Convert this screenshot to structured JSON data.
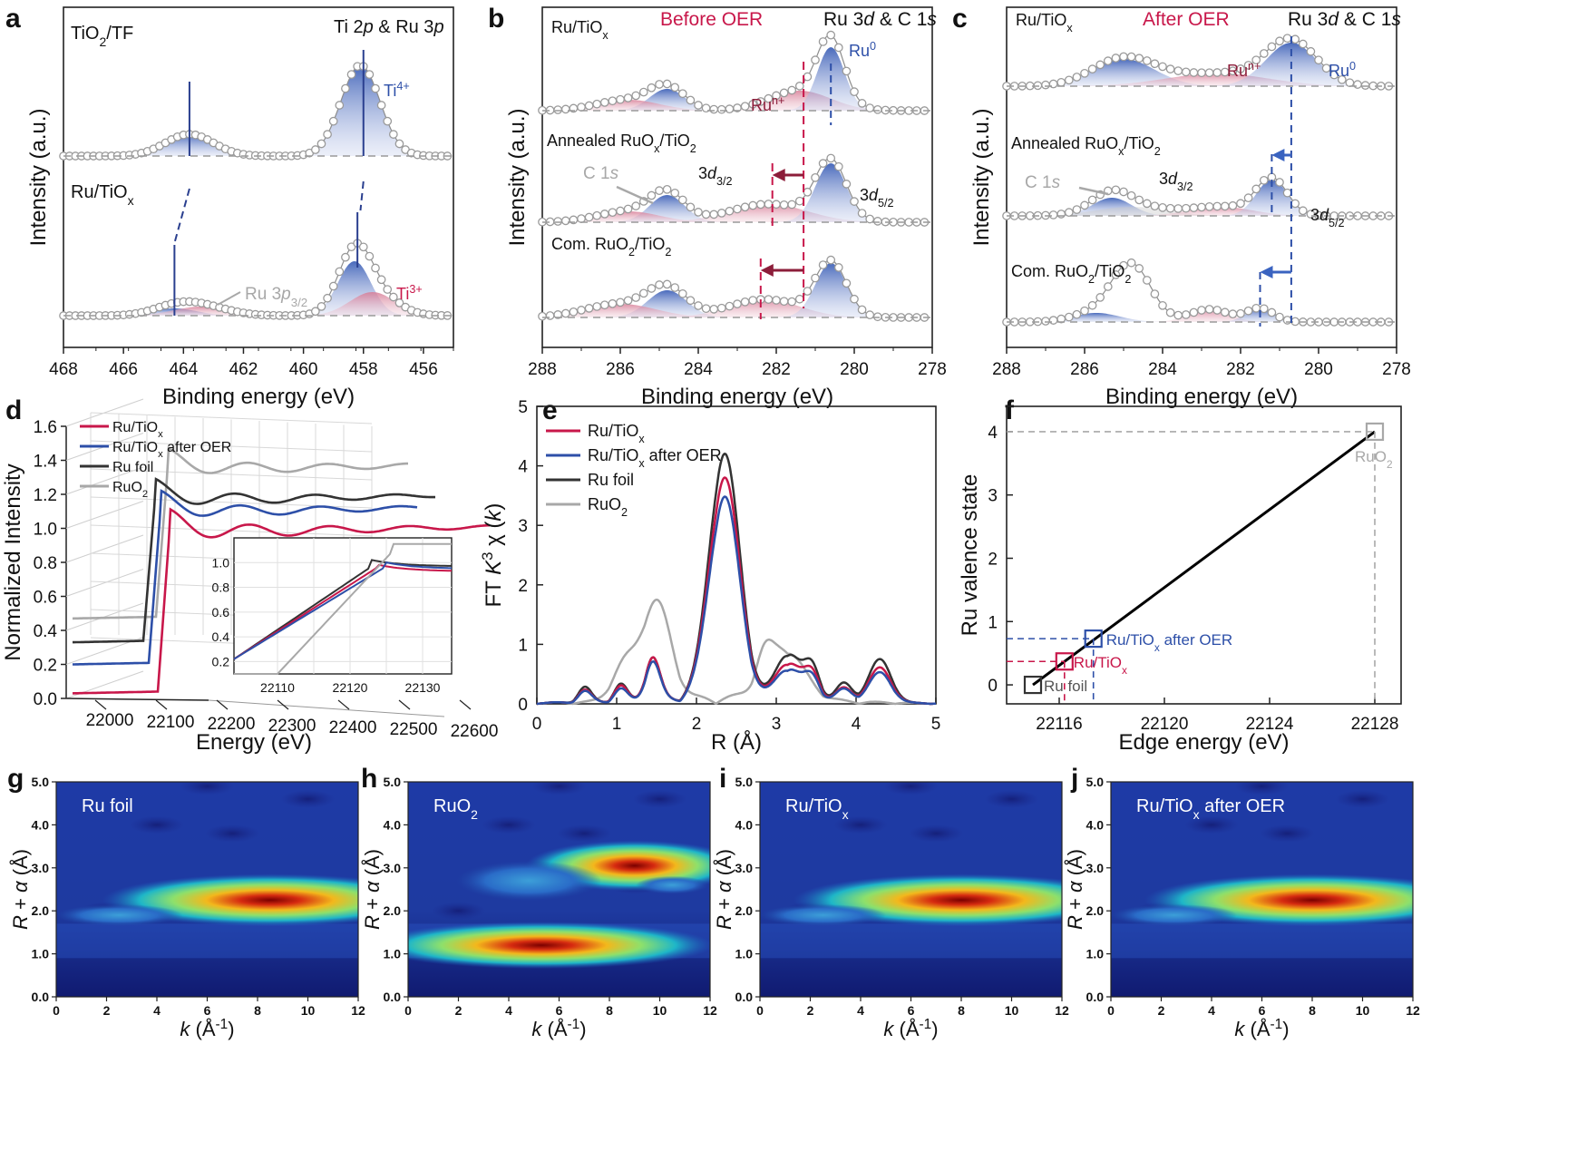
{
  "colors": {
    "red": "#c8174a",
    "blue": "#2d4fa8",
    "black": "#333333",
    "gray": "#a8a8a8",
    "blueFill": "#5a78c4",
    "redFill": "#d9869e",
    "navy": "#2a3f8f",
    "darkred": "#8c1d3a",
    "dash_gray": "#9a9a9a"
  },
  "chart_data": [
    {
      "panel": "a",
      "type": "line",
      "title": "Ti 2p & Ru 3p",
      "xlabel": "Binding energy (eV)",
      "ylabel": "Intensity (a.u.)",
      "xlim": [
        468,
        455
      ],
      "xticks": [
        "468",
        "466",
        "464",
        "462",
        "460",
        "458",
        "456"
      ],
      "labels": {
        "top_sample": "TiO2/TF",
        "bottom_sample": "Ru/TiOx",
        "ti4": "Ti4+",
        "ti3": "Ti3+",
        "ru3p": "Ru 3p3/2"
      },
      "series": [
        {
          "name": "TiO2/TF",
          "peaks": [
            {
              "center": 463.8,
              "height": 0.25
            },
            {
              "center": 458.1,
              "height": 1.0
            }
          ]
        },
        {
          "name": "Ru/TiOx",
          "peaks": [
            {
              "center": 464.2,
              "height": 0.15
            },
            {
              "center": 458.3,
              "height": 0.55
            },
            {
              "center": 457.8,
              "height": 0.25
            }
          ]
        }
      ]
    },
    {
      "panel": "b",
      "type": "line",
      "title": "Ru 3d & C 1s",
      "note": "Before OER",
      "xlabel": "Binding energy (eV)",
      "ylabel": "Intensity (a.u.)",
      "xlim": [
        288,
        278
      ],
      "xticks": [
        "288",
        "286",
        "284",
        "282",
        "280",
        "278"
      ],
      "labels": {
        "s1": "Ru/TiOx",
        "s2": "Annealed RuOx/TiO2",
        "s3": "Com. RuO2/TiO2",
        "ru0": "Ru0",
        "run": "Run+",
        "c1s": "C 1s",
        "d32": "3d3/2",
        "d52": "3d5/2"
      },
      "series": [
        {
          "name": "Ru/TiOx",
          "ru0_center": 280.6
        },
        {
          "name": "Annealed RuOx/TiO2",
          "ru0_center": 280.6
        },
        {
          "name": "Com. RuO2/TiO2",
          "ru0_center": 280.6
        }
      ]
    },
    {
      "panel": "c",
      "type": "line",
      "title": "Ru 3d & C 1s",
      "note": "After OER",
      "xlabel": "Binding energy (eV)",
      "ylabel": "Intensity (a.u.)",
      "xlim": [
        288,
        278
      ],
      "xticks": [
        "288",
        "286",
        "284",
        "282",
        "280",
        "278"
      ],
      "labels": {
        "s1": "Ru/TiOx",
        "s2": "Annealed RuOx/TiO2",
        "s3": "Com. RuO2/TiO2",
        "ru0": "Ru0",
        "run": "Run+",
        "c1s": "C 1s",
        "d32": "3d3/2",
        "d52": "3d5/2"
      }
    },
    {
      "panel": "d",
      "type": "line",
      "xlabel": "Energy (eV)",
      "ylabel": "Normalized Intensity",
      "ylim": [
        0,
        1.6
      ],
      "yticks": [
        "0.0",
        "0.2",
        "0.4",
        "0.6",
        "0.8",
        "1.0",
        "1.2",
        "1.4",
        "1.6"
      ],
      "xticks": [
        "22000",
        "22100",
        "22200",
        "22300",
        "22400",
        "22500",
        "22600"
      ],
      "legend": [
        "Ru/TiOx",
        "Ru/TiOx after OER",
        "Ru foil",
        "RuO2"
      ],
      "inset": {
        "xticks": [
          "22110",
          "22120",
          "22130"
        ],
        "yticks": [
          "0.2",
          "0.4",
          "0.6",
          "0.8",
          "1.0"
        ]
      }
    },
    {
      "panel": "e",
      "type": "line",
      "xlabel": "R (Å)",
      "ylabel": "FT K3 χ (k)",
      "xlim": [
        0,
        5
      ],
      "ylim": [
        0,
        5
      ],
      "xticks": [
        "0",
        "1",
        "2",
        "3",
        "4",
        "5"
      ],
      "yticks": [
        "0",
        "1",
        "2",
        "3",
        "4",
        "5"
      ],
      "series": [
        {
          "name": "Ru/TiOx",
          "peak_R": 2.35,
          "peak_value": 3.72
        },
        {
          "name": "Ru/TiOx after OER",
          "peak_R": 2.35,
          "peak_value": 3.4
        },
        {
          "name": "Ru foil",
          "peak_R": 2.35,
          "peak_value": 4.12
        },
        {
          "name": "RuO2",
          "peak_R": 1.5,
          "peak_value": 1.65
        }
      ]
    },
    {
      "panel": "f",
      "type": "scatter",
      "xlabel": "Edge energy (eV)",
      "ylabel": "Ru valence state",
      "xlim": [
        22114,
        22129
      ],
      "ylim": [
        -0.3,
        4.4
      ],
      "xticks": [
        "22116",
        "22120",
        "22124",
        "22128"
      ],
      "yticks": [
        "0",
        "1",
        "2",
        "3",
        "4"
      ],
      "points": [
        {
          "name": "Ru foil",
          "x": 22115,
          "y": 0
        },
        {
          "name": "Ru/TiOx",
          "x": 22116.2,
          "y": 0.37
        },
        {
          "name": "Ru/TiOx after OER",
          "x": 22117.3,
          "y": 0.73
        },
        {
          "name": "RuO2",
          "x": 22128,
          "y": 4
        }
      ]
    },
    {
      "panel": "g-j",
      "type": "heatmap",
      "xlabel": "k (Å-1)",
      "ylabel": "R + α (Å)",
      "xlim": [
        0,
        12
      ],
      "ylim": [
        0,
        5
      ],
      "xticks": [
        "0",
        "2",
        "4",
        "6",
        "8",
        "10",
        "12"
      ],
      "yticks": [
        "0.0",
        "1.0",
        "2.0",
        "3.0",
        "4.0",
        "5.0"
      ],
      "maps": [
        {
          "panel": "g",
          "title": "Ru foil",
          "max_k": 8.5,
          "max_R": 2.25
        },
        {
          "panel": "h",
          "title": "RuO2",
          "max_k": 5,
          "max_R": 1.2
        },
        {
          "panel": "i",
          "title": "Ru/TiOx",
          "max_k": 8,
          "max_R": 2.25
        },
        {
          "panel": "j",
          "title": "Ru/TiOx after OER",
          "max_k": 8,
          "max_R": 2.25
        }
      ]
    }
  ]
}
